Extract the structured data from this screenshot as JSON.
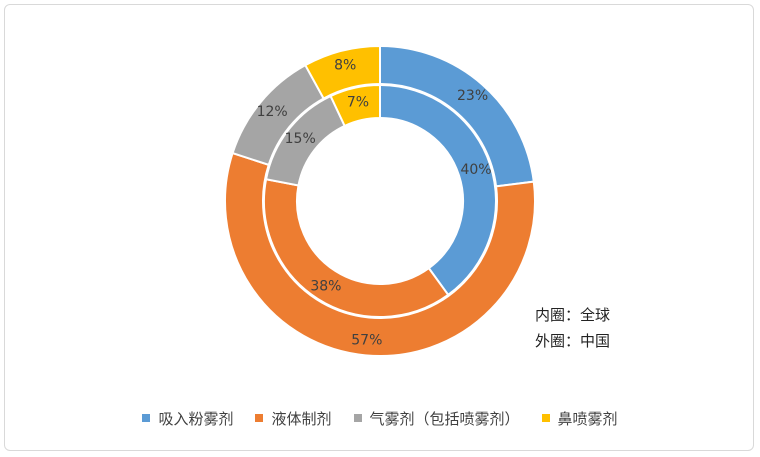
{
  "note": {
    "inner": "内圈：全球",
    "outer": "外圈：中国"
  },
  "chart_data": {
    "type": "pie",
    "categories": [
      "吸入粉雾剂",
      "液体制剂",
      "气雾剂（包括喷雾剂）",
      "鼻喷雾剂"
    ],
    "colors": [
      "#5b9bd5",
      "#ed7d31",
      "#a5a5a5",
      "#ffc000"
    ],
    "series": [
      {
        "values": [
          40,
          38,
          15,
          7
        ],
        "labels": [
          "40%",
          "38%",
          "15%",
          "7%"
        ]
      },
      {
        "values": [
          23,
          57,
          12,
          8
        ],
        "labels": [
          "23%",
          "57%",
          "12%",
          "8%"
        ]
      }
    ],
    "legend_position": "bottom"
  }
}
